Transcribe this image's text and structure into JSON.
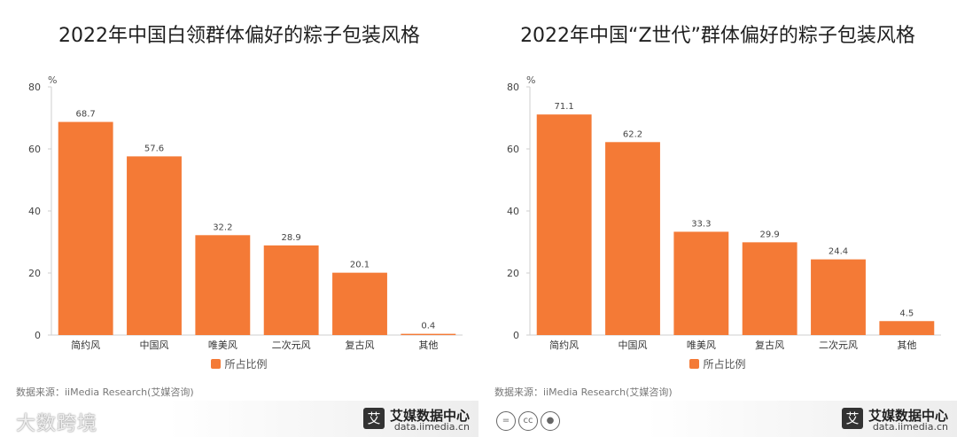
{
  "panels": [
    {
      "title": "2022年中国白领群体偏好的粽子包装风格",
      "legend": "所占比例",
      "source": "数据来源：iiMedia Research(艾媒咨询)",
      "brand_name": "艾媒数据中心",
      "brand_url": "data.iimedia.cn",
      "brand_logo": "艾"
    },
    {
      "title": "2022年中国“Z世代”群体偏好的粽子包装风格",
      "legend": "所占比例",
      "source": "数据来源：iiMedia Research(艾媒咨询)",
      "brand_name": "艾媒数据中心",
      "brand_url": "data.iimedia.cn",
      "brand_logo": "艾"
    }
  ],
  "watermark": "大数跨境",
  "colors": {
    "bar": "#F47A36",
    "axis": "#cccccc",
    "text": "#333333"
  },
  "chart_data": [
    {
      "type": "bar",
      "title": "2022年中国白领群体偏好的粽子包装风格",
      "categories": [
        "简约风",
        "中国风",
        "唯美风",
        "二次元风",
        "复古风",
        "其他"
      ],
      "series": [
        {
          "name": "所占比例",
          "values": [
            68.7,
            57.6,
            32.2,
            28.9,
            20.1,
            0.4
          ]
        }
      ],
      "ylabel": "%",
      "ylim": [
        0,
        80
      ],
      "yticks": [
        0,
        20,
        40,
        60,
        80
      ],
      "legend": "bottom",
      "grid": false
    },
    {
      "type": "bar",
      "title": "2022年中国“Z世代”群体偏好的粽子包装风格",
      "categories": [
        "简约风",
        "中国风",
        "唯美风",
        "复古风",
        "二次元风",
        "其他"
      ],
      "series": [
        {
          "name": "所占比例",
          "values": [
            71.1,
            62.2,
            33.3,
            29.9,
            24.4,
            4.5
          ]
        }
      ],
      "ylabel": "%",
      "ylim": [
        0,
        80
      ],
      "yticks": [
        0,
        20,
        40,
        60,
        80
      ],
      "legend": "bottom",
      "grid": false
    }
  ]
}
